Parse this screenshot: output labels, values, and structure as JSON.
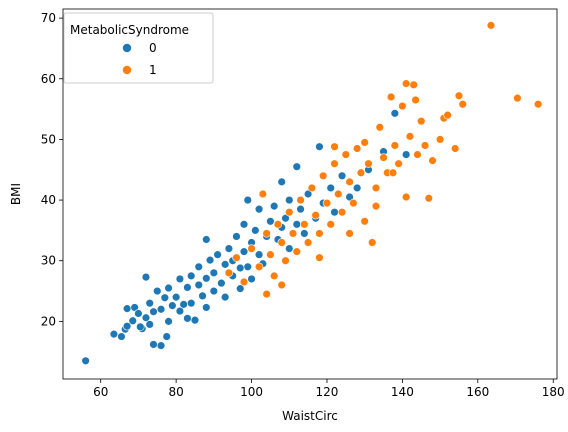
{
  "chart_data": {
    "type": "scatter",
    "title": "",
    "xlabel": "WaistCirc",
    "ylabel": "BMI",
    "xlim": [
      50.0,
      181.0
    ],
    "ylim": [
      10.5,
      71.5
    ],
    "xticks": [
      60,
      80,
      100,
      120,
      140,
      160,
      180
    ],
    "yticks": [
      20,
      30,
      40,
      50,
      60,
      70
    ],
    "grid": false,
    "legend": {
      "title": "MetabolicSyndrome",
      "placement": "top-left",
      "entries": [
        {
          "label": "0",
          "color": "#1f77b4"
        },
        {
          "label": "1",
          "color": "#ff7f0e"
        }
      ]
    },
    "series": [
      {
        "name": "0",
        "color": "#1f77b4",
        "points": [
          [
            56,
            13.5
          ],
          [
            63.5,
            17.9
          ],
          [
            65.5,
            17.5
          ],
          [
            66.5,
            18.7
          ],
          [
            67.0,
            19.2
          ],
          [
            68.5,
            20.1
          ],
          [
            67.0,
            22.1
          ],
          [
            69.0,
            22.3
          ],
          [
            70.0,
            21.3
          ],
          [
            71.0,
            18.8
          ],
          [
            72.0,
            20.6
          ],
          [
            70.5,
            19.1
          ],
          [
            72.0,
            27.3
          ],
          [
            73.0,
            23.0
          ],
          [
            73.0,
            19.5
          ],
          [
            74.0,
            21.6
          ],
          [
            75.0,
            25.0
          ],
          [
            76.0,
            22.0
          ],
          [
            76.0,
            16.0
          ],
          [
            77.0,
            23.9
          ],
          [
            78.0,
            20.0
          ],
          [
            78.0,
            25.5
          ],
          [
            79.0,
            22.6
          ],
          [
            80.0,
            24.0
          ],
          [
            81.0,
            27.0
          ],
          [
            81.0,
            21.7
          ],
          [
            82.0,
            22.8
          ],
          [
            83.0,
            25.6
          ],
          [
            84.0,
            27.5
          ],
          [
            84.0,
            23.0
          ],
          [
            85.0,
            20.2
          ],
          [
            86.0,
            26.0
          ],
          [
            86.0,
            29.0
          ],
          [
            87.0,
            24.2
          ],
          [
            88.0,
            27.1
          ],
          [
            88.0,
            22.3
          ],
          [
            89.0,
            30.1
          ],
          [
            90.0,
            25.0
          ],
          [
            90.0,
            28.0
          ],
          [
            91.0,
            31.0
          ],
          [
            92.0,
            26.3
          ],
          [
            93.0,
            29.4
          ],
          [
            93.0,
            24.0
          ],
          [
            94.0,
            32.0
          ],
          [
            95.0,
            27.5
          ],
          [
            95.0,
            30.0
          ],
          [
            96.0,
            34.0
          ],
          [
            97.0,
            28.8
          ],
          [
            97.0,
            25.4
          ],
          [
            98.0,
            31.5
          ],
          [
            98.0,
            36.0
          ],
          [
            99.0,
            29.0
          ],
          [
            99.0,
            40.0
          ],
          [
            100.0,
            33.0
          ],
          [
            100.0,
            27.0
          ],
          [
            101.0,
            35.0
          ],
          [
            102.0,
            31.0
          ],
          [
            102.0,
            38.5
          ],
          [
            103.0,
            29.5
          ],
          [
            104.0,
            34.0
          ],
          [
            105.0,
            36.5
          ],
          [
            105.0,
            31.0
          ],
          [
            106.0,
            39.0
          ],
          [
            107.0,
            33.5
          ],
          [
            108.0,
            35.5
          ],
          [
            109.0,
            37.0
          ],
          [
            110.0,
            32.0
          ],
          [
            110.0,
            40.0
          ],
          [
            112.0,
            36.0
          ],
          [
            113.0,
            38.5
          ],
          [
            114.0,
            34.5
          ],
          [
            115.0,
            41.0
          ],
          [
            117.0,
            37.0
          ],
          [
            118.0,
            48.8
          ],
          [
            119.0,
            39.5
          ],
          [
            121.0,
            42.0
          ],
          [
            122.0,
            38.0
          ],
          [
            124.0,
            44.0
          ],
          [
            126.0,
            40.5
          ],
          [
            128.0,
            42.0
          ],
          [
            131.0,
            45.0
          ],
          [
            135.0,
            48.0
          ],
          [
            138.0,
            54.3
          ],
          [
            141.0,
            47.5
          ],
          [
            112.0,
            45.5
          ],
          [
            108.0,
            43.0
          ],
          [
            88.0,
            33.5
          ],
          [
            83.0,
            20.5
          ],
          [
            77.5,
            17.5
          ],
          [
            74.0,
            16.2
          ]
        ]
      },
      {
        "name": "1",
        "color": "#ff7f0e",
        "points": [
          [
            94.0,
            28.0
          ],
          [
            96.0,
            30.5
          ],
          [
            98.0,
            26.5
          ],
          [
            100.0,
            32.0
          ],
          [
            102.0,
            29.0
          ],
          [
            103.0,
            41.0
          ],
          [
            104.0,
            34.5
          ],
          [
            105.0,
            31.0
          ],
          [
            106.0,
            27.5
          ],
          [
            107.0,
            36.0
          ],
          [
            108.0,
            33.0
          ],
          [
            109.0,
            30.0
          ],
          [
            110.0,
            38.0
          ],
          [
            111.0,
            34.5
          ],
          [
            112.0,
            31.5
          ],
          [
            113.0,
            40.0
          ],
          [
            114.0,
            36.0
          ],
          [
            115.0,
            33.0
          ],
          [
            116.0,
            42.0
          ],
          [
            117.0,
            37.5
          ],
          [
            118.0,
            34.5
          ],
          [
            119.0,
            44.0
          ],
          [
            120.0,
            39.5
          ],
          [
            121.0,
            36.0
          ],
          [
            122.0,
            46.0
          ],
          [
            123.0,
            41.0
          ],
          [
            124.0,
            38.0
          ],
          [
            125.0,
            47.5
          ],
          [
            126.0,
            43.0
          ],
          [
            127.0,
            39.5
          ],
          [
            128.0,
            48.5
          ],
          [
            129.0,
            44.5
          ],
          [
            130.0,
            36.5
          ],
          [
            131.0,
            46.0
          ],
          [
            132.0,
            33.0
          ],
          [
            133.0,
            42.0
          ],
          [
            134.0,
            52.0
          ],
          [
            135.0,
            47.0
          ],
          [
            136.0,
            44.5
          ],
          [
            137.0,
            57.0
          ],
          [
            138.0,
            49.0
          ],
          [
            139.0,
            46.0
          ],
          [
            140.0,
            55.5
          ],
          [
            141.0,
            59.2
          ],
          [
            142.0,
            50.5
          ],
          [
            143.0,
            59.0
          ],
          [
            143.5,
            56.5
          ],
          [
            144.0,
            47.5
          ],
          [
            145.0,
            53.0
          ],
          [
            146.0,
            49.0
          ],
          [
            147.0,
            40.3
          ],
          [
            148.0,
            46.5
          ],
          [
            150.0,
            50.0
          ],
          [
            151.0,
            53.5
          ],
          [
            152.0,
            54.0
          ],
          [
            154.0,
            48.5
          ],
          [
            155.0,
            57.2
          ],
          [
            156.0,
            55.8
          ],
          [
            163.5,
            68.8
          ],
          [
            170.5,
            56.8
          ],
          [
            176.0,
            55.8
          ],
          [
            118.0,
            30.5
          ],
          [
            122.0,
            48.8
          ],
          [
            126.0,
            34.5
          ],
          [
            130.0,
            49.5
          ],
          [
            133.0,
            39.0
          ],
          [
            137.5,
            44.5
          ],
          [
            141.0,
            40.5
          ],
          [
            104.0,
            24.5
          ],
          [
            108.0,
            26.0
          ]
        ]
      }
    ]
  }
}
